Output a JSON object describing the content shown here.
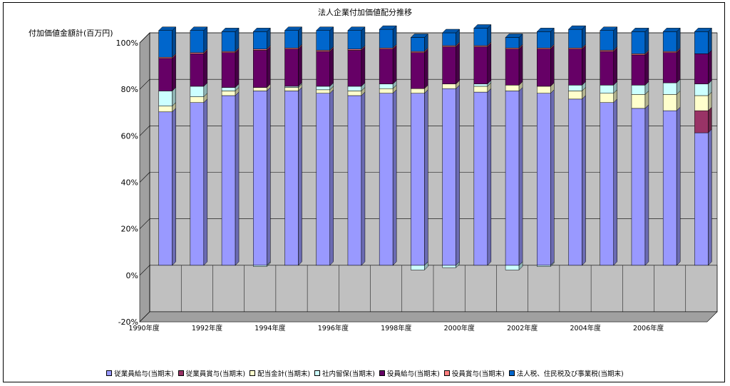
{
  "chart_data": {
    "type": "bar",
    "stacked": true,
    "title": "法人企業付加価値配分推移",
    "ylabel": "付加価値金額計(百万円)",
    "xlabel": "",
    "ylim": [
      -20,
      100
    ],
    "yticks": [
      "-20%",
      "0%",
      "20%",
      "40%",
      "60%",
      "80%",
      "100%"
    ],
    "grid": true,
    "legend_position": "bottom",
    "categories": [
      "1990年度",
      "",
      "1992年度",
      "",
      "1994年度",
      "",
      "1996年度",
      "",
      "1998年度",
      "",
      "2000年度",
      "",
      "2002年度",
      "",
      "2004年度",
      "",
      "2006年度",
      ""
    ],
    "series": [
      {
        "name": "従業員給与(当期末)",
        "color": "#9999ff",
        "values": [
          66,
          70,
          73,
          75,
          75,
          74,
          73,
          74,
          74,
          76,
          74.5,
          75,
          74,
          71.5,
          70,
          67.5,
          66.5,
          57
        ]
      },
      {
        "name": "従業員賞与(当期末)",
        "color": "#993366",
        "values": [
          0,
          0,
          0,
          0,
          0,
          0,
          0,
          0,
          0,
          0,
          0,
          0,
          0,
          0,
          0,
          0,
          0,
          9.5
        ]
      },
      {
        "name": "配当金計(当期末)",
        "color": "#ffffcc",
        "values": [
          2.5,
          2.5,
          2,
          1.5,
          1.5,
          1.5,
          2,
          2,
          2,
          2,
          2.5,
          2.5,
          3,
          3.5,
          4,
          6,
          7,
          6.5
        ]
      },
      {
        "name": "社内留保(当期末)",
        "color": "#ccffff",
        "values": [
          6.5,
          4.5,
          1.5,
          0,
          0.5,
          1.5,
          2,
          2,
          0,
          0,
          1,
          0,
          0,
          2.5,
          3.5,
          4,
          5,
          5
        ]
      },
      {
        "name": "役員給与(当期末)",
        "color": "#660066",
        "values": [
          14,
          14,
          15,
          16,
          16,
          15,
          15.5,
          15,
          15.5,
          16,
          16,
          15.5,
          16,
          15.5,
          14.5,
          13,
          13,
          13
        ]
      },
      {
        "name": "役員賞与(当期末)",
        "color": "#ff8080",
        "values": [
          0.5,
          0.5,
          0.5,
          0.5,
          0.5,
          0.5,
          0.5,
          0.5,
          0.5,
          0.5,
          0.5,
          0.5,
          0.5,
          0.5,
          0.5,
          0.5,
          0.5,
          0
        ]
      },
      {
        "name": "法人税、住民税及び事業税(当期末)",
        "color": "#0066cc",
        "values": [
          11.5,
          9.5,
          8.5,
          7.5,
          7.5,
          8.5,
          8,
          8,
          6,
          5.5,
          7.5,
          4.5,
          7,
          8,
          8.5,
          9.5,
          8.5,
          9.5
        ]
      },
      {
        "name": "社内留保(当期末)",
        "color": "#ccffff",
        "negative_part": true,
        "values": [
          0,
          0,
          0,
          -0.5,
          0,
          0,
          0,
          0,
          -2,
          -1,
          0,
          -2,
          -0.5,
          0,
          0,
          0,
          0,
          0
        ]
      }
    ]
  }
}
